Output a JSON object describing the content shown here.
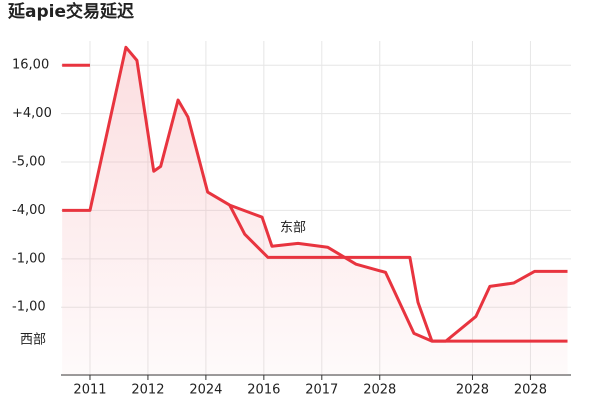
{
  "chart_data": {
    "type": "line",
    "title": "延apie交易延迟",
    "xlim": [
      0.5,
      9.3
    ],
    "ylim": [
      -1.4,
      5.5
    ],
    "xticks": [
      {
        "value": 1,
        "label": "2011"
      },
      {
        "value": 2,
        "label": "2012"
      },
      {
        "value": 3,
        "label": "2024"
      },
      {
        "value": 4,
        "label": "2016"
      },
      {
        "value": 5,
        "label": "2017"
      },
      {
        "value": 6,
        "label": "2028"
      },
      {
        "value": 7.6,
        "label": "2028"
      },
      {
        "value": 8.6,
        "label": "2028"
      }
    ],
    "yticks": [
      {
        "value": 5,
        "label": "16,00"
      },
      {
        "value": 4,
        "label": "+4,00"
      },
      {
        "value": 3,
        "label": "-5,00"
      },
      {
        "value": 2,
        "label": "-4,00"
      },
      {
        "value": 1,
        "label": "-1,00"
      },
      {
        "value": 0,
        "label": "-1,00"
      }
    ],
    "grid": true,
    "series": [
      {
        "name": "东部",
        "color": "#e8343f",
        "x": [
          0.52,
          1,
          1.62,
          1.81,
          2.1,
          2.22,
          2.52,
          2.69,
          3.03,
          3.41,
          3.97,
          4.14,
          4.59,
          5.1,
          5.59,
          6.1,
          6.59,
          6.9,
          7.14,
          7.66,
          7.9,
          8.31,
          8.67,
          9.24
        ],
        "values": [
          2.0,
          2.0,
          5.37,
          5.1,
          2.81,
          2.91,
          4.28,
          3.93,
          2.38,
          2.11,
          1.86,
          1.26,
          1.32,
          1.24,
          0.89,
          0.72,
          -0.54,
          -0.7,
          -0.7,
          -0.19,
          0.43,
          0.5,
          0.74,
          0.74
        ]
      },
      {
        "name": "西部",
        "color": "#e8343f",
        "x": [
          0.52,
          1,
          null,
          3.41,
          3.67,
          4.07,
          6.52,
          6.66,
          6.9,
          9.24
        ],
        "values": [
          5.0,
          5.0,
          null,
          2.11,
          1.51,
          1.03,
          1.03,
          0.1,
          -0.7,
          -0.7
        ]
      }
    ]
  }
}
